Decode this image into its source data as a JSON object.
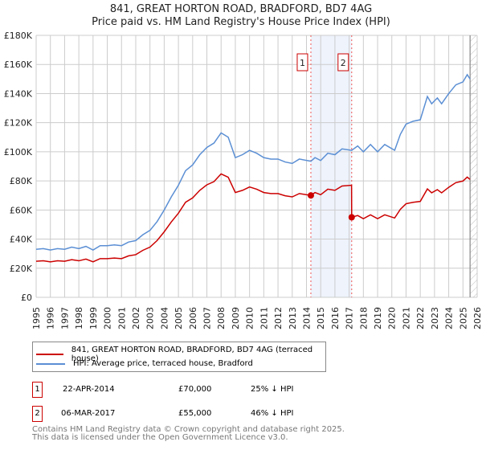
{
  "title": "841, GREAT HORTON ROAD, BRADFORD, BD7 4AG",
  "subtitle": "Price paid vs. HM Land Registry's House Price Index (HPI)",
  "chart_data": {
    "type": "line",
    "title": "841, GREAT HORTON ROAD, BRADFORD, BD7 4AG",
    "subtitle": "Price paid vs. HM Land Registry's House Price Index (HPI)",
    "xlim": [
      1995,
      2026
    ],
    "ylim": [
      0,
      180000
    ],
    "yticks": [
      {
        "v": 0,
        "label": "£0"
      },
      {
        "v": 20000,
        "label": "£20K"
      },
      {
        "v": 40000,
        "label": "£40K"
      },
      {
        "v": 60000,
        "label": "£60K"
      },
      {
        "v": 80000,
        "label": "£80K"
      },
      {
        "v": 100000,
        "label": "£100K"
      },
      {
        "v": 120000,
        "label": "£120K"
      },
      {
        "v": 140000,
        "label": "£140K"
      },
      {
        "v": 160000,
        "label": "£160K"
      },
      {
        "v": 180000,
        "label": "£180K"
      }
    ],
    "xticks": [
      "1995",
      "1996",
      "1997",
      "1998",
      "1999",
      "2000",
      "2001",
      "2002",
      "2003",
      "2004",
      "2005",
      "2006",
      "2007",
      "2008",
      "2009",
      "2010",
      "2011",
      "2012",
      "2013",
      "2014",
      "2015",
      "2016",
      "2017",
      "2018",
      "2019",
      "2020",
      "2021",
      "2022",
      "2023",
      "2024",
      "2025",
      "2026"
    ],
    "grid": true,
    "shaded_range": [
      2014.31,
      2017.18
    ],
    "forecast_hatch_from": 2025.5,
    "series": [
      {
        "name": "841, GREAT HORTON ROAD, BRADFORD, BD7 4AG (terraced house)",
        "color": "#cc0000",
        "x": [
          1995,
          1995.5,
          1996,
          1996.5,
          1997,
          1997.5,
          1998,
          1998.5,
          1999,
          1999.5,
          2000,
          2000.5,
          2001,
          2001.5,
          2002,
          2002.5,
          2003,
          2003.5,
          2004,
          2004.5,
          2005,
          2005.5,
          2006,
          2006.5,
          2007,
          2007.5,
          2008,
          2008.5,
          2009,
          2009.5,
          2010,
          2010.5,
          2011,
          2011.5,
          2012,
          2012.5,
          2013,
          2013.5,
          2014.31,
          2014.6,
          2015,
          2015.5,
          2016,
          2016.5,
          2017.17,
          2017.18,
          2017.6,
          2018,
          2018.5,
          2019,
          2019.5,
          2020.2,
          2020.6,
          2021,
          2021.5,
          2022,
          2022.5,
          2022.8,
          2023.2,
          2023.5,
          2024,
          2024.5,
          2025,
          2025.3,
          2025.5
        ],
        "y": [
          24800,
          25100,
          24400,
          25100,
          24800,
          25900,
          25100,
          26300,
          24400,
          26600,
          26600,
          27000,
          26600,
          28500,
          29300,
          32300,
          34500,
          39000,
          45000,
          51800,
          57800,
          65300,
          68300,
          73500,
          77300,
          79500,
          84800,
          82500,
          72000,
          73500,
          75800,
          74300,
          72000,
          71300,
          71300,
          69800,
          69000,
          71300,
          70000,
          72000,
          70500,
          74300,
          73500,
          76500,
          77000,
          55000,
          56200,
          54000,
          56700,
          54000,
          56700,
          54500,
          60500,
          64300,
          65300,
          65900,
          74500,
          71800,
          74000,
          71800,
          75600,
          78800,
          79900,
          82600,
          81000
        ]
      },
      {
        "name": "HPI: Average price, terraced house, Bradford",
        "color": "#5b8fd4",
        "x": [
          1995,
          1995.5,
          1996,
          1996.5,
          1997,
          1997.5,
          1998,
          1998.5,
          1999,
          1999.5,
          2000,
          2000.5,
          2001,
          2001.5,
          2002,
          2002.5,
          2003,
          2003.5,
          2004,
          2004.5,
          2005,
          2005.5,
          2006,
          2006.5,
          2007,
          2007.5,
          2008,
          2008.5,
          2009,
          2009.5,
          2010,
          2010.5,
          2011,
          2011.5,
          2012,
          2012.5,
          2013,
          2013.5,
          2014.31,
          2014.6,
          2015,
          2015.5,
          2016,
          2016.5,
          2017.18,
          2017.6,
          2018,
          2018.5,
          2019,
          2019.5,
          2020.2,
          2020.6,
          2021,
          2021.5,
          2022,
          2022.5,
          2022.8,
          2023.2,
          2023.5,
          2024,
          2024.5,
          2025,
          2025.3,
          2025.5
        ],
        "y": [
          33000,
          33500,
          32500,
          33500,
          33000,
          34500,
          33500,
          35000,
          32500,
          35500,
          35500,
          36000,
          35500,
          38000,
          39000,
          43000,
          46000,
          52000,
          60000,
          69000,
          77000,
          87000,
          91000,
          98000,
          103000,
          106000,
          113000,
          110000,
          96000,
          98000,
          101000,
          99000,
          96000,
          95000,
          95000,
          93000,
          92000,
          95000,
          93500,
          96000,
          94000,
          99000,
          98000,
          102000,
          101000,
          104000,
          100000,
          105000,
          100000,
          105000,
          101000,
          112000,
          119000,
          121000,
          122000,
          138000,
          133000,
          137000,
          133000,
          140000,
          146000,
          148000,
          153000,
          150000
        ]
      }
    ],
    "sales": [
      {
        "label": "1",
        "x": 2014.31,
        "y": 70000
      },
      {
        "label": "2",
        "x": 2017.18,
        "y": 55000
      }
    ]
  },
  "legend": {
    "items": [
      {
        "label": "841, GREAT HORTON ROAD, BRADFORD, BD7 4AG (terraced house)",
        "color": "#cc0000"
      },
      {
        "label": "HPI: Average price, terraced house, Bradford",
        "color": "#5b8fd4"
      }
    ]
  },
  "transactions": [
    {
      "id": "1",
      "date": "22-APR-2014",
      "price": "£70,000",
      "hpi": "25% ↓ HPI"
    },
    {
      "id": "2",
      "date": "06-MAR-2017",
      "price": "£55,000",
      "hpi": "46% ↓ HPI"
    }
  ],
  "footer": {
    "line1": "Contains HM Land Registry data © Crown copyright and database right 2025.",
    "line2": "This data is licensed under the Open Government Licence v3.0."
  }
}
